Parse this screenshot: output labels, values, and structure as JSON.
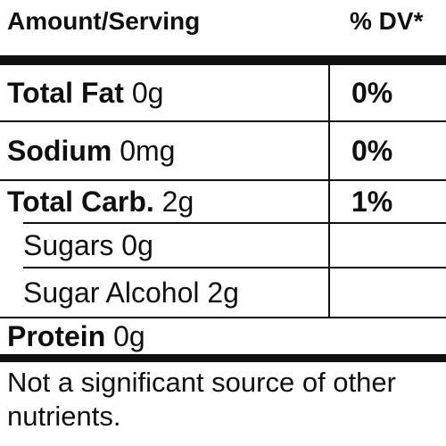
{
  "header": {
    "amount_label": "Amount/Serving",
    "dv_label": "% DV*"
  },
  "rows": [
    {
      "name": "Total Fat",
      "amount": "0g",
      "dv": "0%"
    },
    {
      "name": "Sodium",
      "amount": "0mg",
      "dv": "0%"
    },
    {
      "name": "Total Carb.",
      "amount": "2g",
      "dv": "1%"
    },
    {
      "name": "Sugars",
      "amount": "0g",
      "dv": ""
    },
    {
      "name": "Sugar Alcohol",
      "amount": "2g",
      "dv": ""
    },
    {
      "name": "Protein",
      "amount": "0g",
      "dv": ""
    }
  ],
  "footnote": "Not a significant source of other nutrients."
}
